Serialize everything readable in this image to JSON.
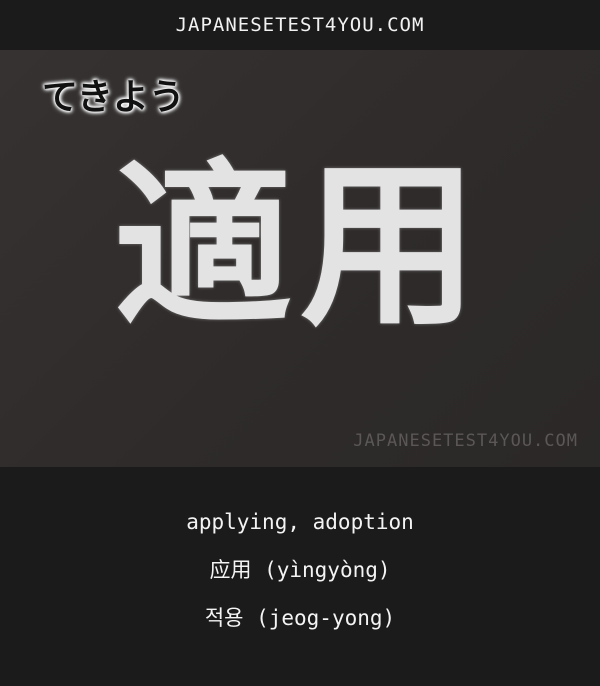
{
  "header": {
    "site": "JAPANESETEST4YOU.COM"
  },
  "card": {
    "reading": "てきよう",
    "kanji": "適用",
    "watermark": "JAPANESETEST4YOU.COM"
  },
  "meanings": {
    "english": "applying, adoption",
    "chinese": "应用 (yìngyòng)",
    "korean": "적용 (jeog-yong)"
  }
}
